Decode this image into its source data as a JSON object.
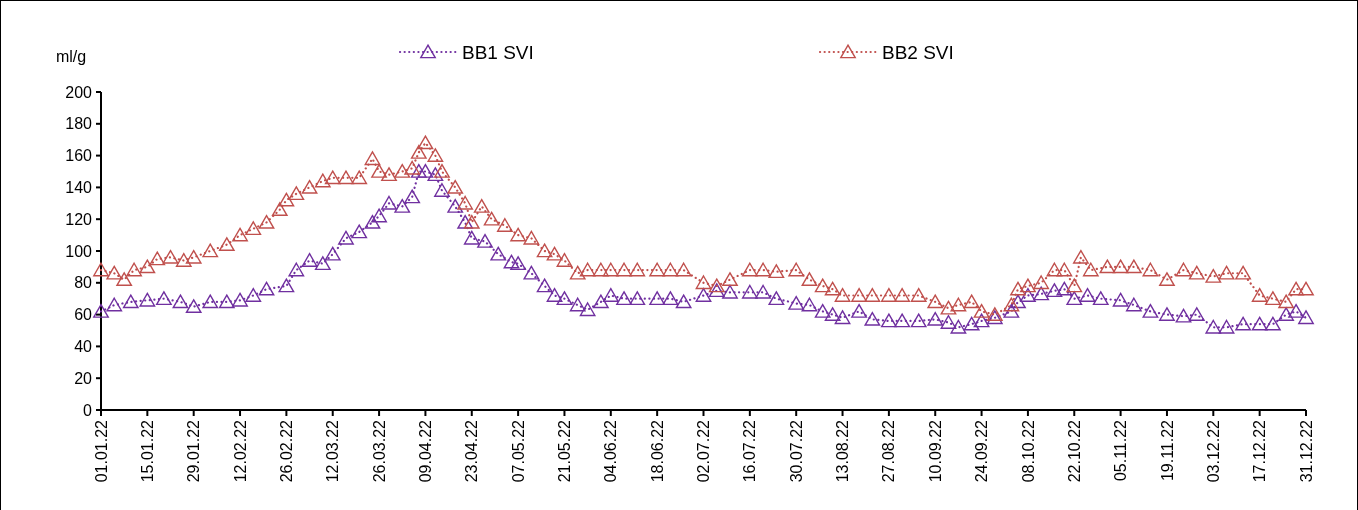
{
  "chart_data": {
    "type": "line",
    "ylabel": "ml/g",
    "legend": "top",
    "marker": "triangle",
    "line_style": "dotted",
    "grid": false,
    "xlim": [
      "--01-01",
      "--12-31"
    ],
    "ylim": [
      0,
      200
    ],
    "yticks": [
      0,
      20,
      40,
      60,
      80,
      100,
      120,
      140,
      160,
      180,
      200
    ],
    "xticks": [
      {
        "value": "--01-01",
        "label": "01.01.22"
      },
      {
        "value": "--01-15",
        "label": "15.01.22"
      },
      {
        "value": "--01-29",
        "label": "29.01.22"
      },
      {
        "value": "--02-12",
        "label": "12.02.22"
      },
      {
        "value": "--02-26",
        "label": "26.02.22"
      },
      {
        "value": "--03-12",
        "label": "12.03.22"
      },
      {
        "value": "--03-26",
        "label": "26.03.22"
      },
      {
        "value": "--04-09",
        "label": "09.04.22"
      },
      {
        "value": "--04-23",
        "label": "23.04.22"
      },
      {
        "value": "--05-07",
        "label": "07.05.22"
      },
      {
        "value": "--05-21",
        "label": "21.05.22"
      },
      {
        "value": "--06-04",
        "label": "04.06.22"
      },
      {
        "value": "--06-18",
        "label": "18.06.22"
      },
      {
        "value": "--07-02",
        "label": "02.07.22"
      },
      {
        "value": "--07-16",
        "label": "16.07.22"
      },
      {
        "value": "--07-30",
        "label": "30.07.22"
      },
      {
        "value": "--08-13",
        "label": "13.08.22"
      },
      {
        "value": "--08-27",
        "label": "27.08.22"
      },
      {
        "value": "--09-10",
        "label": "10.09.22"
      },
      {
        "value": "--09-24",
        "label": "24.09.22"
      },
      {
        "value": "--10-08",
        "label": "08.10.22"
      },
      {
        "value": "--10-22",
        "label": "22.10.22"
      },
      {
        "value": "--11-05",
        "label": "05.11.22"
      },
      {
        "value": "--11-19",
        "label": "19.11.22"
      },
      {
        "value": "--12-03",
        "label": "03.12.22"
      },
      {
        "value": "--12-17",
        "label": "17.12.22"
      },
      {
        "value": "--12-31",
        "label": "31.12.22"
      }
    ],
    "series": [
      {
        "name": "BB1 SVI",
        "color": "#7030a0",
        "x": [
          "--01-01",
          "--01-05",
          "--01-10",
          "--01-15",
          "--01-20",
          "--01-25",
          "--01-29",
          "--02-03",
          "--02-08",
          "--02-12",
          "--02-16",
          "--02-20",
          "--02-26",
          "--03-01",
          "--03-05",
          "--03-09",
          "--03-12",
          "--03-16",
          "--03-20",
          "--03-24",
          "--03-26",
          "--03-29",
          "--04-02",
          "--04-05",
          "--04-07",
          "--04-09",
          "--04-12",
          "--04-14",
          "--04-18",
          "--04-21",
          "--04-23",
          "--04-27",
          "--05-01",
          "--05-05",
          "--05-07",
          "--05-11",
          "--05-15",
          "--05-18",
          "--05-21",
          "--05-25",
          "--05-28",
          "--06-01",
          "--06-04",
          "--06-08",
          "--06-12",
          "--06-18",
          "--06-22",
          "--06-26",
          "--07-02",
          "--07-06",
          "--07-10",
          "--07-16",
          "--07-20",
          "--07-24",
          "--07-30",
          "--08-03",
          "--08-07",
          "--08-10",
          "--08-13",
          "--08-18",
          "--08-22",
          "--08-27",
          "--08-31",
          "--09-05",
          "--09-10",
          "--09-14",
          "--09-17",
          "--09-21",
          "--09-24",
          "--09-28",
          "--10-03",
          "--10-05",
          "--10-08",
          "--10-12",
          "--10-16",
          "--10-19",
          "--10-22",
          "--10-26",
          "--10-30",
          "--11-05",
          "--11-09",
          "--11-14",
          "--11-19",
          "--11-24",
          "--11-28",
          "--12-03",
          "--12-07",
          "--12-12",
          "--12-17",
          "--12-21",
          "--12-25",
          "--12-28",
          "--12-31"
        ],
        "values": [
          62,
          66,
          68,
          69,
          70,
          68,
          65,
          68,
          68,
          69,
          72,
          76,
          78,
          88,
          94,
          92,
          98,
          108,
          112,
          118,
          122,
          130,
          128,
          134,
          150,
          150,
          148,
          138,
          128,
          118,
          108,
          106,
          98,
          93,
          92,
          86,
          78,
          72,
          70,
          66,
          63,
          68,
          72,
          70,
          70,
          70,
          70,
          68,
          72,
          75,
          74,
          74,
          74,
          70,
          67,
          66,
          62,
          60,
          58,
          62,
          57,
          56,
          56,
          56,
          57,
          55,
          52,
          54,
          56,
          58,
          62,
          68,
          72,
          73,
          75,
          76,
          70,
          72,
          70,
          69,
          66,
          62,
          60,
          59,
          60,
          52,
          52,
          54,
          54,
          54,
          60,
          62,
          58
        ]
      },
      {
        "name": "BB2 SVI",
        "color": "#c0504d",
        "x": [
          "--01-01",
          "--01-05",
          "--01-08",
          "--01-11",
          "--01-15",
          "--01-18",
          "--01-22",
          "--01-26",
          "--01-29",
          "--02-03",
          "--02-08",
          "--02-12",
          "--02-16",
          "--02-20",
          "--02-24",
          "--02-26",
          "--03-01",
          "--03-05",
          "--03-09",
          "--03-12",
          "--03-16",
          "--03-20",
          "--03-24",
          "--03-26",
          "--03-29",
          "--04-02",
          "--04-05",
          "--04-07",
          "--04-09",
          "--04-12",
          "--04-14",
          "--04-18",
          "--04-21",
          "--04-23",
          "--04-26",
          "--04-29",
          "--05-03",
          "--05-07",
          "--05-11",
          "--05-15",
          "--05-18",
          "--05-21",
          "--05-25",
          "--05-28",
          "--06-01",
          "--06-04",
          "--06-08",
          "--06-12",
          "--06-18",
          "--06-22",
          "--06-26",
          "--07-02",
          "--07-06",
          "--07-10",
          "--07-16",
          "--07-20",
          "--07-24",
          "--07-30",
          "--08-03",
          "--08-07",
          "--08-10",
          "--08-13",
          "--08-18",
          "--08-22",
          "--08-27",
          "--08-31",
          "--09-05",
          "--09-10",
          "--09-14",
          "--09-17",
          "--09-21",
          "--09-24",
          "--09-28",
          "--10-03",
          "--10-05",
          "--10-08",
          "--10-12",
          "--10-16",
          "--10-19",
          "--10-22",
          "--10-24",
          "--10-27",
          "--11-01",
          "--11-05",
          "--11-09",
          "--11-14",
          "--11-19",
          "--11-24",
          "--11-28",
          "--12-03",
          "--12-07",
          "--12-12",
          "--12-17",
          "--12-21",
          "--12-25",
          "--12-28",
          "--12-31"
        ],
        "values": [
          88,
          86,
          82,
          88,
          90,
          95,
          96,
          94,
          96,
          100,
          104,
          110,
          114,
          118,
          126,
          132,
          136,
          140,
          144,
          146,
          146,
          146,
          158,
          150,
          148,
          150,
          152,
          162,
          168,
          160,
          150,
          140,
          130,
          118,
          128,
          120,
          116,
          110,
          108,
          100,
          98,
          94,
          86,
          88,
          88,
          88,
          88,
          88,
          88,
          88,
          88,
          80,
          78,
          82,
          88,
          88,
          87,
          88,
          82,
          78,
          76,
          72,
          72,
          72,
          72,
          72,
          72,
          68,
          64,
          66,
          68,
          62,
          60,
          66,
          76,
          78,
          80,
          88,
          88,
          78,
          96,
          88,
          90,
          90,
          90,
          88,
          82,
          88,
          86,
          84,
          86,
          86,
          72,
          70,
          68,
          76,
          76
        ]
      }
    ]
  }
}
